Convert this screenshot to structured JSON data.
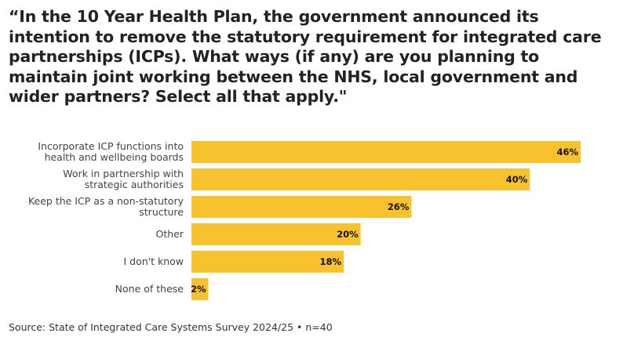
{
  "title": "“In the 10 Year Health Plan, the government announced its intention to remove the statutory requirement for integrated care partnerships (ICPs). What ways (if any) are you planning to maintain joint working between the NHS, local government and wider partners? Select all that apply.\"",
  "source": "Source: State of Integrated Care Systems Survey 2024/25 • n=40",
  "colors": {
    "bar": "#F8C22F",
    "text": "#222222"
  },
  "chart_data": {
    "type": "bar",
    "orientation": "horizontal",
    "categories": [
      [
        "Incorporate ICP functions into",
        "health and wellbeing boards"
      ],
      [
        "Work in partnership with",
        "strategic authorities"
      ],
      [
        "Keep the ICP as a non-statutory",
        "structure"
      ],
      [
        "Other"
      ],
      [
        "I don't know"
      ],
      [
        "None of these"
      ]
    ],
    "values": [
      46,
      40,
      26,
      20,
      18,
      2
    ],
    "value_labels": [
      "46%",
      "40%",
      "26%",
      "20%",
      "18%",
      "2%"
    ],
    "unit": "%",
    "xlim": [
      0,
      46
    ],
    "grid": false,
    "legend": "none"
  }
}
